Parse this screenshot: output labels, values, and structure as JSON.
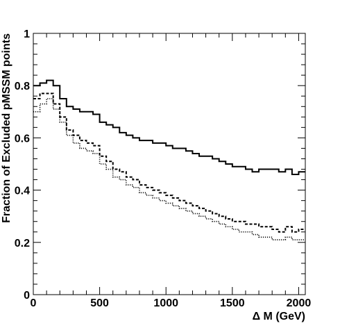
{
  "chart_data": {
    "type": "line",
    "step": true,
    "xlabel": "Δ M (GeV)",
    "ylabel": "Fraction of Excluded pMSSM points",
    "xlim": [
      0,
      2050
    ],
    "ylim": [
      0,
      1
    ],
    "x_ticks": [
      0,
      500,
      1000,
      1500,
      2000
    ],
    "x_tick_labels": [
      "0",
      "500",
      "1000",
      "1500",
      "2000"
    ],
    "y_ticks": [
      0,
      0.2,
      0.4,
      0.6,
      0.8,
      1
    ],
    "y_tick_labels": [
      "0",
      "0.2",
      "0.4",
      "0.6",
      "0.8",
      "1"
    ],
    "grid": false,
    "legend": "none",
    "bin_width": 50,
    "x": [
      0,
      50,
      100,
      150,
      200,
      250,
      300,
      350,
      400,
      450,
      500,
      550,
      600,
      650,
      700,
      750,
      800,
      850,
      900,
      950,
      1000,
      1050,
      1100,
      1150,
      1200,
      1250,
      1300,
      1350,
      1400,
      1450,
      1500,
      1550,
      1600,
      1650,
      1700,
      1750,
      1800,
      1850,
      1900,
      1950,
      2000
    ],
    "series": [
      {
        "style": "solid",
        "values": [
          0.8,
          0.81,
          0.82,
          0.8,
          0.75,
          0.72,
          0.71,
          0.7,
          0.7,
          0.69,
          0.66,
          0.65,
          0.64,
          0.62,
          0.61,
          0.6,
          0.59,
          0.59,
          0.58,
          0.58,
          0.57,
          0.56,
          0.56,
          0.55,
          0.54,
          0.53,
          0.53,
          0.52,
          0.51,
          0.5,
          0.49,
          0.49,
          0.48,
          0.47,
          0.48,
          0.48,
          0.48,
          0.47,
          0.48,
          0.46,
          0.47
        ]
      },
      {
        "style": "dashed",
        "values": [
          0.75,
          0.77,
          0.77,
          0.73,
          0.68,
          0.63,
          0.61,
          0.59,
          0.58,
          0.57,
          0.53,
          0.51,
          0.48,
          0.47,
          0.45,
          0.44,
          0.42,
          0.41,
          0.4,
          0.39,
          0.38,
          0.37,
          0.36,
          0.35,
          0.34,
          0.33,
          0.32,
          0.31,
          0.3,
          0.29,
          0.28,
          0.28,
          0.27,
          0.27,
          0.26,
          0.26,
          0.25,
          0.24,
          0.26,
          0.24,
          0.25
        ]
      },
      {
        "style": "dotted",
        "values": [
          0.7,
          0.73,
          0.75,
          0.71,
          0.66,
          0.61,
          0.58,
          0.56,
          0.55,
          0.54,
          0.5,
          0.48,
          0.45,
          0.44,
          0.42,
          0.41,
          0.39,
          0.38,
          0.37,
          0.36,
          0.35,
          0.34,
          0.33,
          0.32,
          0.31,
          0.3,
          0.29,
          0.28,
          0.27,
          0.26,
          0.25,
          0.24,
          0.24,
          0.23,
          0.22,
          0.22,
          0.21,
          0.21,
          0.22,
          0.21,
          0.21
        ]
      }
    ]
  }
}
